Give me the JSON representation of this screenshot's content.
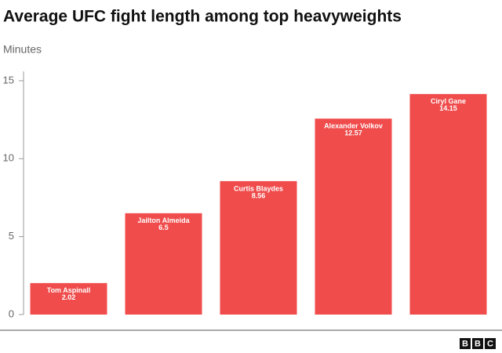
{
  "chart_data": {
    "type": "bar",
    "title": "Average UFC fight length among top heavyweights",
    "y_label": "Minutes",
    "categories": [
      "Tom Aspinall",
      "Jailton Almeida",
      "Curtis Blaydes",
      "Alexander Volkov",
      "Ciryl Gane"
    ],
    "values": [
      2.02,
      6.5,
      8.56,
      12.57,
      14.15
    ],
    "color": "#f04c4c",
    "ylim": [
      0,
      15.6
    ],
    "yticks": [
      0,
      5,
      10,
      15
    ],
    "grid": false,
    "logo": [
      "B",
      "B",
      "C"
    ]
  }
}
